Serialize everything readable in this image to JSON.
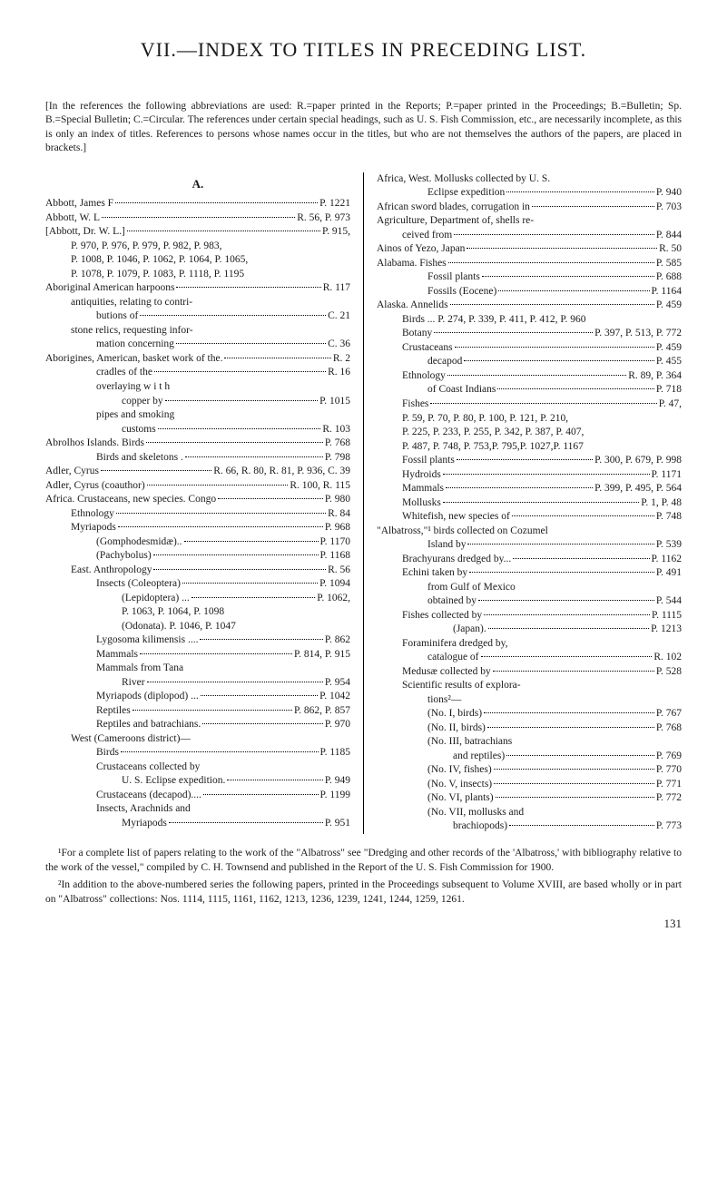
{
  "title": "VII.—INDEX TO TITLES IN PRECEDING LIST.",
  "intro": "[In the references the following abbreviations are used: R.=paper printed in the Reports; P.=paper printed in the Proceedings; B.=Bulletin; Sp. B.=Special Bulletin; C.=Circular. The references under certain special headings, such as U. S. Fish Commission, etc., are necessarily incomplete, as this is only an index of titles. References to persons whose names occur in the titles, but who are not themselves the authors of the papers, are placed in brackets.]",
  "left_heading": "A.",
  "left": [
    {
      "label": "Abbott, James F",
      "ref": "P. 1221",
      "ind": 0
    },
    {
      "label": "Abbott, W. L",
      "ref": "R. 56, P. 973",
      "ind": 0
    },
    {
      "label": "[Abbott, Dr. W. L.]",
      "ref": "P. 915,",
      "ind": 0
    },
    {
      "label": "P. 970, P. 976, P. 979, P. 982, P. 983,",
      "ref": "",
      "ind": 1,
      "noline": true
    },
    {
      "label": "P. 1008, P. 1046, P. 1062, P. 1064, P. 1065,",
      "ref": "",
      "ind": 1,
      "noline": true
    },
    {
      "label": "P. 1078, P. 1079, P. 1083, P. 1118, P. 1195",
      "ref": "",
      "ind": 1,
      "noline": true
    },
    {
      "label": "Aboriginal American harpoons",
      "ref": "R. 117",
      "ind": 0
    },
    {
      "label": "antiquities, relating to contri-",
      "ref": "",
      "ind": 1,
      "noline": true
    },
    {
      "label": "butions of",
      "ref": "C. 21",
      "ind": 2
    },
    {
      "label": "stone relics, requesting infor-",
      "ref": "",
      "ind": 1,
      "noline": true
    },
    {
      "label": "mation concerning",
      "ref": "C. 36",
      "ind": 2
    },
    {
      "label": "Aborigines, American, basket work of the.",
      "ref": "R. 2",
      "ind": 0
    },
    {
      "label": "cradles of the",
      "ref": "R. 16",
      "ind": 2
    },
    {
      "label": "overlaying w i t h",
      "ref": "",
      "ind": 2,
      "noline": true
    },
    {
      "label": "copper by",
      "ref": "P. 1015",
      "ind": 3
    },
    {
      "label": "pipes and smoking",
      "ref": "",
      "ind": 2,
      "noline": true
    },
    {
      "label": "customs",
      "ref": "R. 103",
      "ind": 3
    },
    {
      "label": "Abrolhos Islands.  Birds",
      "ref": "P. 768",
      "ind": 0
    },
    {
      "label": "Birds and skeletons .",
      "ref": "P. 798",
      "ind": 2
    },
    {
      "label": "Adler, Cyrus",
      "ref": "R. 66, R. 80, R. 81, P. 936, C. 39",
      "ind": 0
    },
    {
      "label": "Adler, Cyrus (coauthor)",
      "ref": "R. 100, R. 115",
      "ind": 0
    },
    {
      "label": "Africa.  Crustaceans, new species.  Congo",
      "ref": "P. 980",
      "ind": 0
    },
    {
      "label": "Ethnology",
      "ref": "R. 84",
      "ind": 1
    },
    {
      "label": "Myriapods",
      "ref": "P. 968",
      "ind": 1
    },
    {
      "label": "(Gomphodesmidæ)..",
      "ref": "P. 1170",
      "ind": 2
    },
    {
      "label": "(Pachybolus)",
      "ref": "P. 1168",
      "ind": 2
    },
    {
      "label": "East.  Anthropology",
      "ref": "R. 56",
      "ind": 1
    },
    {
      "label": "Insects (Coleoptera)",
      "ref": "P. 1094",
      "ind": 2
    },
    {
      "label": "(Lepidoptera) ...",
      "ref": "P. 1062,",
      "ind": 3
    },
    {
      "label": "P. 1063, P. 1064, P. 1098",
      "ref": "",
      "ind": 3,
      "noline": true
    },
    {
      "label": "(Odonata).  P. 1046, P. 1047",
      "ref": "",
      "ind": 3,
      "noline": true
    },
    {
      "label": "Lygosoma kilimensis ....",
      "ref": "P. 862",
      "ind": 2
    },
    {
      "label": "Mammals",
      "ref": "P. 814, P. 915",
      "ind": 2
    },
    {
      "label": "Mammals   from   Tana",
      "ref": "",
      "ind": 2,
      "noline": true
    },
    {
      "label": "River",
      "ref": "P. 954",
      "ind": 3
    },
    {
      "label": "Myriapods (diplopod) ...",
      "ref": "P. 1042",
      "ind": 2
    },
    {
      "label": "Reptiles",
      "ref": "P. 862, P. 857",
      "ind": 2
    },
    {
      "label": "Reptiles and batrachians.",
      "ref": "P. 970",
      "ind": 2
    },
    {
      "label": "West (Cameroons district)—",
      "ref": "",
      "ind": 1,
      "noline": true
    },
    {
      "label": "Birds",
      "ref": "P. 1185",
      "ind": 2
    },
    {
      "label": "Crustaceans   collected   by",
      "ref": "",
      "ind": 2,
      "noline": true
    },
    {
      "label": "U. S. Eclipse expedition.",
      "ref": "P. 949",
      "ind": 3
    },
    {
      "label": "Crustaceans (decapod)....",
      "ref": "P. 1199",
      "ind": 2
    },
    {
      "label": "Insects,  Arachnids   and",
      "ref": "",
      "ind": 2,
      "noline": true
    },
    {
      "label": "Myriapods",
      "ref": "P. 951",
      "ind": 3
    }
  ],
  "right": [
    {
      "label": "Africa, West.  Mollusks collected by U. S.",
      "ref": "",
      "ind": 0,
      "noline": true
    },
    {
      "label": "Eclipse expedition",
      "ref": "P. 940",
      "ind": 2
    },
    {
      "label": "African sword blades, corrugation in",
      "ref": "P. 703",
      "ind": 0
    },
    {
      "label": "Agriculture,  Department  of,  shells  re-",
      "ref": "",
      "ind": 0,
      "noline": true
    },
    {
      "label": "ceived from",
      "ref": "P. 844",
      "ind": 1
    },
    {
      "label": "Ainos of Yezo, Japan",
      "ref": "R. 50",
      "ind": 0
    },
    {
      "label": "Alabama.  Fishes",
      "ref": "P. 585",
      "ind": 0
    },
    {
      "label": "Fossil plants",
      "ref": "P. 688",
      "ind": 2
    },
    {
      "label": "Fossils (Eocene)",
      "ref": "P. 1164",
      "ind": 2
    },
    {
      "label": "Alaska.  Annelids",
      "ref": "P. 459",
      "ind": 0
    },
    {
      "label": "Birds ... P. 274, P. 339, P. 411, P. 412, P. 960",
      "ref": "",
      "ind": 1,
      "noline": true
    },
    {
      "label": "Botany",
      "ref": "P. 397, P. 513, P. 772",
      "ind": 1
    },
    {
      "label": "Crustaceans",
      "ref": "P. 459",
      "ind": 1
    },
    {
      "label": "decapod",
      "ref": "P. 455",
      "ind": 2
    },
    {
      "label": "Ethnology",
      "ref": "R. 89, P. 364",
      "ind": 1
    },
    {
      "label": "of Coast Indians",
      "ref": "P. 718",
      "ind": 2
    },
    {
      "label": "Fishes",
      "ref": "P. 47,",
      "ind": 1
    },
    {
      "label": "P. 59, P. 70, P. 80, P. 100, P. 121, P. 210,",
      "ref": "",
      "ind": 1,
      "noline": true
    },
    {
      "label": "P. 225, P. 233, P. 255, P. 342, P. 387, P. 407,",
      "ref": "",
      "ind": 1,
      "noline": true
    },
    {
      "label": "P. 487, P. 748, P. 753,P. 795,P. 1027,P. 1167",
      "ref": "",
      "ind": 1,
      "noline": true
    },
    {
      "label": "Fossil plants",
      "ref": "P. 300, P. 679, P. 998",
      "ind": 1
    },
    {
      "label": "Hydroids",
      "ref": "P. 1171",
      "ind": 1
    },
    {
      "label": "Mammals",
      "ref": "P. 399, P. 495, P. 564",
      "ind": 1
    },
    {
      "label": "Mollusks",
      "ref": "P. 1, P. 48",
      "ind": 1
    },
    {
      "label": "Whitefish, new species of",
      "ref": "P. 748",
      "ind": 1
    },
    {
      "label": "\"Albatross,\"¹ birds collected on Cozumel",
      "ref": "",
      "ind": 0,
      "noline": true
    },
    {
      "label": "Island by",
      "ref": "P. 539",
      "ind": 2
    },
    {
      "label": "Brachyurans dredged by...",
      "ref": "P. 1162",
      "ind": 1
    },
    {
      "label": "Echini taken by",
      "ref": "P. 491",
      "ind": 1
    },
    {
      "label": "from Gulf of Mexico",
      "ref": "",
      "ind": 2,
      "noline": true
    },
    {
      "label": "obtained by",
      "ref": "P. 544",
      "ind": 2
    },
    {
      "label": "Fishes collected by",
      "ref": "P. 1115",
      "ind": 1
    },
    {
      "label": "(Japan).",
      "ref": "P. 1213",
      "ind": 3
    },
    {
      "label": "Foraminifera  dredged  by,",
      "ref": "",
      "ind": 1,
      "noline": true
    },
    {
      "label": "catalogue of",
      "ref": "R. 102",
      "ind": 2
    },
    {
      "label": "Medusæ collected by",
      "ref": "P. 528",
      "ind": 1
    },
    {
      "label": "Scientific results of explora-",
      "ref": "",
      "ind": 1,
      "noline": true
    },
    {
      "label": "tions²—",
      "ref": "",
      "ind": 2,
      "noline": true
    },
    {
      "label": "(No. I, birds)",
      "ref": "P. 767",
      "ind": 2
    },
    {
      "label": "(No. II, birds)",
      "ref": "P. 768",
      "ind": 2
    },
    {
      "label": "(No.  III,  batrachians",
      "ref": "",
      "ind": 2,
      "noline": true
    },
    {
      "label": "and reptiles)",
      "ref": "P. 769",
      "ind": 3
    },
    {
      "label": "(No. IV, fishes)",
      "ref": "P. 770",
      "ind": 2
    },
    {
      "label": "(No. V, insects)",
      "ref": "P. 771",
      "ind": 2
    },
    {
      "label": "(No. VI, plants)",
      "ref": "P. 772",
      "ind": 2
    },
    {
      "label": "(No. VII, mollusks and",
      "ref": "",
      "ind": 2,
      "noline": true
    },
    {
      "label": "brachiopods)",
      "ref": "P. 773",
      "ind": 3
    }
  ],
  "footnote1": "¹For a complete list of papers relating to the work of the \"Albatross\" see \"Dredging and other records of the 'Albatross,' with bibliography relative to the work of the vessel,\" compiled by C. H. Townsend and published in the Report of the U. S. Fish Commission for 1900.",
  "footnote2": "²In addition to the above-numbered series the following papers, printed in the Proceedings subsequent to Volume XVIII, are based wholly or in part on \"Albatross\" collections: Nos. 1114, 1115, 1161, 1162, 1213, 1236, 1239, 1241, 1244, 1259, 1261.",
  "pagenum": "131"
}
